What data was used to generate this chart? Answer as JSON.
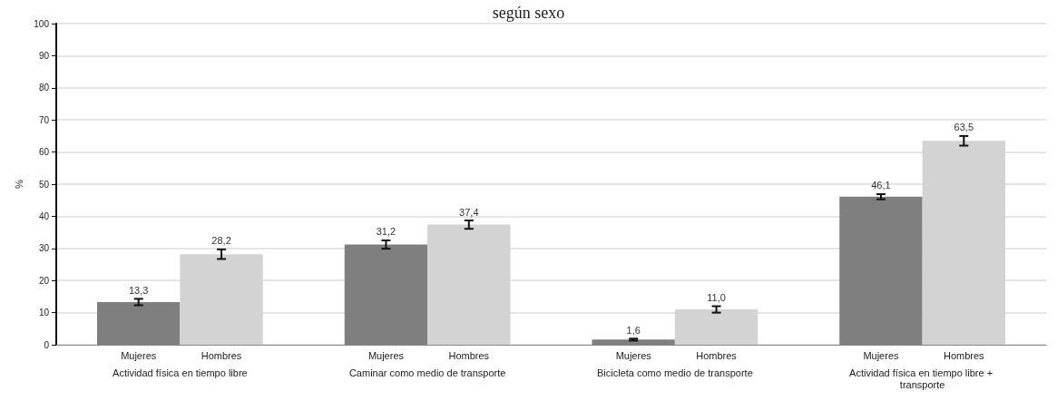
{
  "chart_data": {
    "type": "bar",
    "title": "según sexo",
    "ylabel": "%",
    "categories": [
      "Actividad física en tiempo libre",
      "Caminar como medio de transporte",
      "Bicicleta como medio de transporte",
      "Actividad física en tiempo libre + transporte"
    ],
    "series": [
      {
        "name": "Mujeres",
        "color": "#7f7f7f",
        "values": [
          13.3,
          31.2,
          1.6,
          46.1
        ],
        "errors": [
          1.0,
          1.3,
          0.3,
          0.8
        ],
        "value_labels": [
          "13,3",
          "31,2",
          "1,6",
          "46,1"
        ]
      },
      {
        "name": "Hombres",
        "color": "#d3d3d3",
        "values": [
          28.2,
          37.4,
          11.0,
          63.5
        ],
        "errors": [
          1.5,
          1.3,
          1.0,
          1.5
        ],
        "value_labels": [
          "28,2",
          "37,4",
          "11,0",
          "63,5"
        ]
      }
    ],
    "ylim": [
      0,
      100
    ],
    "yticks": [
      0,
      10,
      20,
      30,
      40,
      50,
      60,
      70,
      80,
      90,
      100
    ],
    "grid": "y",
    "legend": false
  }
}
